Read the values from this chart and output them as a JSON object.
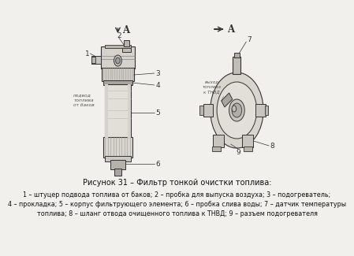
{
  "bg_color": "#f2f0ec",
  "title_line": "Рисунок 31 – Фильтр тонкой очистки топлива:",
  "caption_line1": "1 – штуцер подвода топлива от баков; 2 – пробка для выпуска воздуха; 3 – подогреватель;",
  "caption_line2": "4 – прокладка; 5 – корпус фильтрующего элемента; 6 – пробка слива воды; 7 – датчик температуры",
  "caption_line3": "топлива; 8 – шланг отвода очищенного топлива к ТНВД; 9 – разъем подогревателя",
  "title_fontsize": 7.0,
  "caption_fontsize": 5.8,
  "label_fontsize": 8.5,
  "number_fontsize": 6.5
}
